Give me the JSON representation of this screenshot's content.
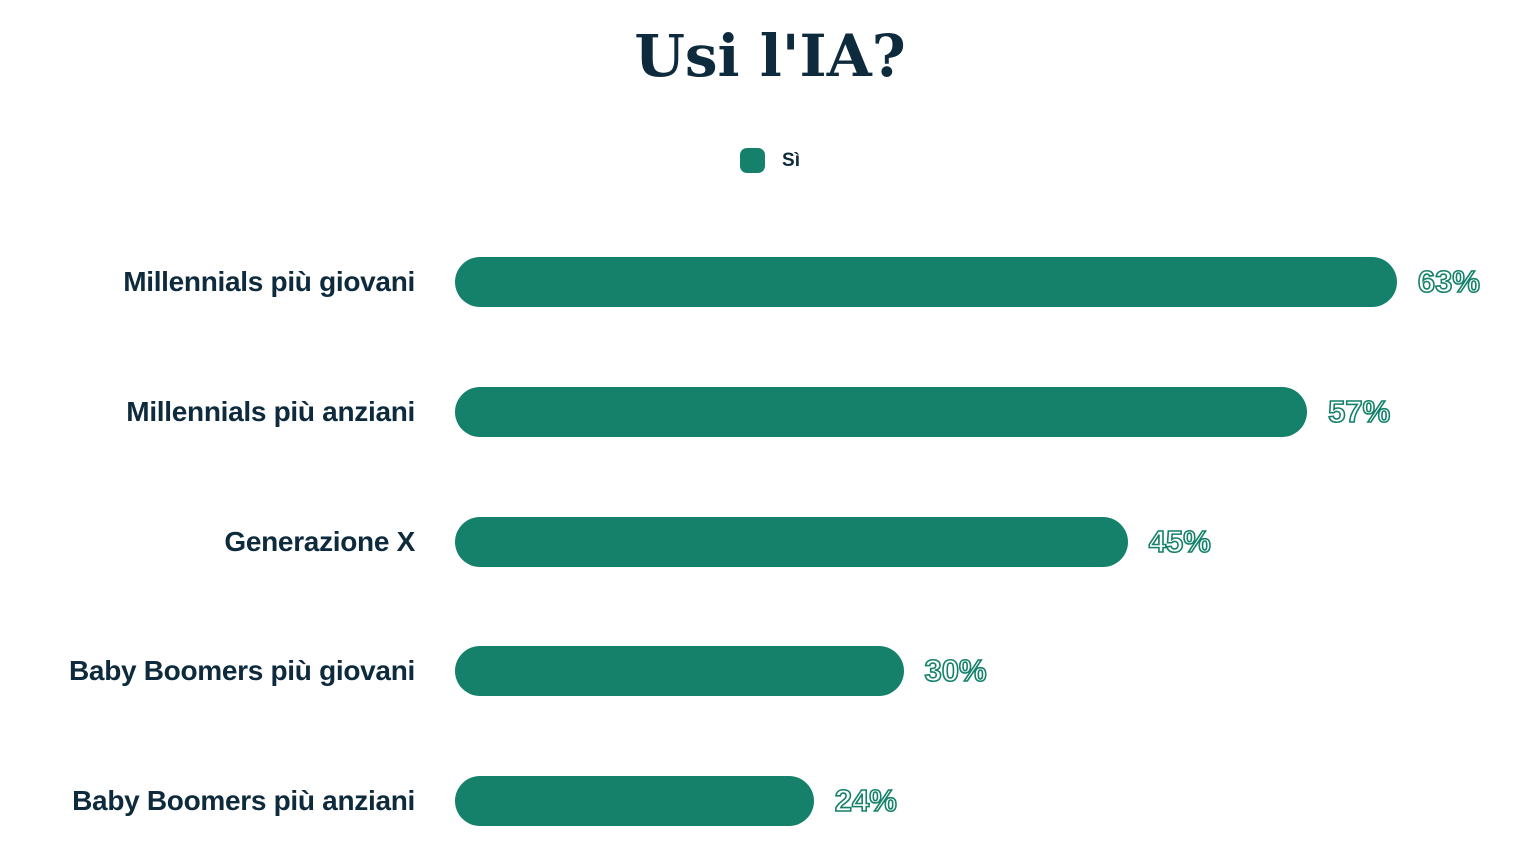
{
  "chart_data": {
    "type": "bar",
    "orientation": "horizontal",
    "title": "Usi l'IA?",
    "legend_position": "top",
    "legend": [
      {
        "label": "Sì",
        "color": "#15816B"
      }
    ],
    "categories": [
      "Millennials più giovani",
      "Millennials più anziani",
      "Generazione X",
      "Baby Boomers più giovani",
      "Baby Boomers più anziani"
    ],
    "series": [
      {
        "name": "Sì",
        "values": [
          63,
          57,
          45,
          30,
          24
        ]
      }
    ],
    "value_suffix": "%",
    "value_label_style": "outline",
    "xlim": [
      0,
      70
    ],
    "grid": false,
    "colors": {
      "bar": "#15816B",
      "label_text": "#0E2A3D",
      "value_text": "#15816B",
      "background": "#FFFFFF"
    }
  }
}
